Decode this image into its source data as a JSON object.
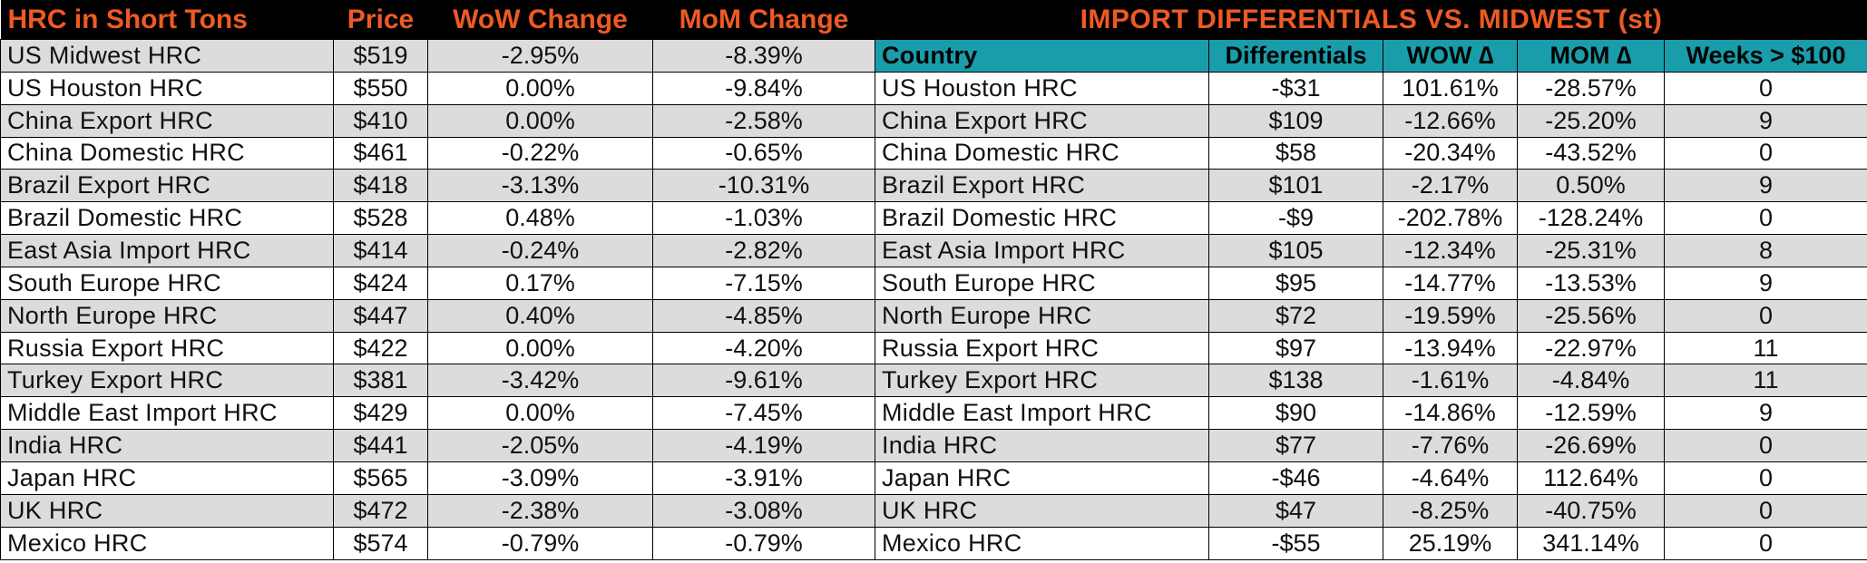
{
  "left_table": {
    "headers": [
      "HRC in Short Tons",
      "Price",
      "WoW Change",
      "MoM Change"
    ],
    "rows": [
      [
        "US Midwest HRC",
        "$519",
        "-2.95%",
        "-8.39%"
      ],
      [
        "US Houston HRC",
        "$550",
        "0.00%",
        "-9.84%"
      ],
      [
        "China Export HRC",
        "$410",
        "0.00%",
        "-2.58%"
      ],
      [
        "China Domestic HRC",
        "$461",
        "-0.22%",
        "-0.65%"
      ],
      [
        "Brazil Export HRC",
        "$418",
        "-3.13%",
        "-10.31%"
      ],
      [
        "Brazil Domestic HRC",
        "$528",
        "0.48%",
        "-1.03%"
      ],
      [
        "East Asia Import HRC",
        "$414",
        "-0.24%",
        "-2.82%"
      ],
      [
        "South Europe HRC",
        "$424",
        "0.17%",
        "-7.15%"
      ],
      [
        "North Europe HRC",
        "$447",
        "0.40%",
        "-4.85%"
      ],
      [
        "Russia Export HRC",
        "$422",
        "0.00%",
        "-4.20%"
      ],
      [
        "Turkey Export HRC",
        "$381",
        "-3.42%",
        "-9.61%"
      ],
      [
        "Middle East Import HRC",
        "$429",
        "0.00%",
        "-7.45%"
      ],
      [
        "India HRC",
        "$441",
        "-2.05%",
        "-4.19%"
      ],
      [
        "Japan HRC",
        "$565",
        "-3.09%",
        "-3.91%"
      ],
      [
        "UK HRC",
        "$472",
        "-2.38%",
        "-3.08%"
      ],
      [
        "Mexico HRC",
        "$574",
        "-0.79%",
        "-0.79%"
      ]
    ]
  },
  "right_table": {
    "title": "IMPORT DIFFERENTIALS VS. MIDWEST (st)",
    "headers": [
      "Country",
      "Differentials",
      "WOW ∆",
      "MOM ∆",
      "Weeks > $100"
    ],
    "rows": [
      [
        "US Houston HRC",
        "-$31",
        "101.61%",
        "-28.57%",
        "0"
      ],
      [
        "China Export HRC",
        "$109",
        "-12.66%",
        "-25.20%",
        "9"
      ],
      [
        "China Domestic HRC",
        "$58",
        "-20.34%",
        "-43.52%",
        "0"
      ],
      [
        "Brazil Export HRC",
        "$101",
        "-2.17%",
        "0.50%",
        "9"
      ],
      [
        "Brazil Domestic HRC",
        "-$9",
        "-202.78%",
        "-128.24%",
        "0"
      ],
      [
        "East Asia Import HRC",
        "$105",
        "-12.34%",
        "-25.31%",
        "8"
      ],
      [
        "South Europe HRC",
        "$95",
        "-14.77%",
        "-13.53%",
        "9"
      ],
      [
        "North Europe HRC",
        "$72",
        "-19.59%",
        "-25.56%",
        "0"
      ],
      [
        "Russia Export HRC",
        "$97",
        "-13.94%",
        "-22.97%",
        "11"
      ],
      [
        "Turkey Export HRC",
        "$138",
        "-1.61%",
        "-4.84%",
        "11"
      ],
      [
        "Middle East Import HRC",
        "$90",
        "-14.86%",
        "-12.59%",
        "9"
      ],
      [
        "India HRC",
        "$77",
        "-7.76%",
        "-26.69%",
        "0"
      ],
      [
        "Japan HRC",
        "-$46",
        "-4.64%",
        "112.64%",
        "0"
      ],
      [
        "UK HRC",
        "$47",
        "-8.25%",
        "-40.75%",
        "0"
      ],
      [
        "Mexico HRC",
        "-$55",
        "25.19%",
        "341.14%",
        "0"
      ]
    ]
  },
  "colors": {
    "title_background": "#000000",
    "title_text": "#ee5a24",
    "header_background": "#1a9dab",
    "row_grey": "#dcdcdc",
    "row_white": "#ffffff"
  }
}
